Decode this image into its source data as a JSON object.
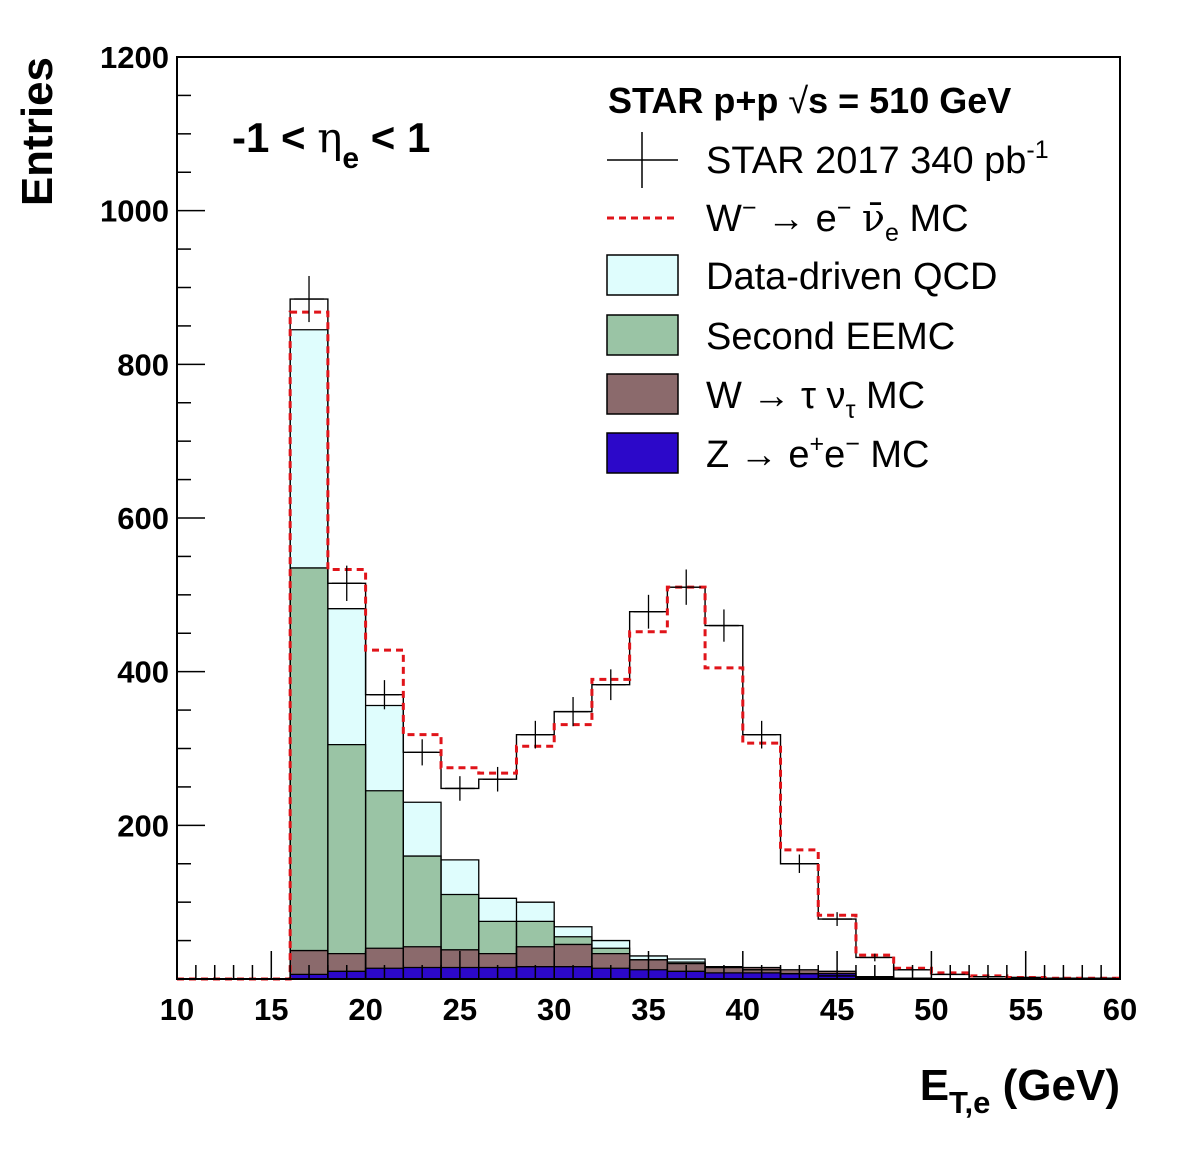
{
  "chart_data": {
    "type": "bar",
    "title": "",
    "xlabel": "E",
    "xlabel_sub": "T,e",
    "xlabel_unit": "(GeV)",
    "ylabel": "Entries",
    "xlim": [
      10,
      60
    ],
    "ylim": [
      0,
      1200
    ],
    "x_ticks": [
      10,
      15,
      20,
      25,
      30,
      35,
      40,
      45,
      50,
      55,
      60
    ],
    "y_ticks": [
      200,
      400,
      600,
      800,
      1000,
      1200
    ],
    "bin_edges": [
      10,
      12,
      14,
      16,
      18,
      20,
      22,
      24,
      26,
      28,
      30,
      32,
      34,
      36,
      38,
      40,
      42,
      44,
      46,
      48,
      50,
      52,
      54,
      56,
      58,
      60
    ],
    "region_label": {
      "pre": "-1 < ",
      "eta": "η",
      "sub": "e",
      "post": " < 1"
    },
    "legend_title": {
      "pre": "STAR p+p  ",
      "sqrt": "√",
      "post": "s = 510 GeV"
    },
    "legend": [
      {
        "key": "data",
        "pre": "STAR 2017 340 pb",
        "sup": "-1"
      },
      {
        "key": "wmc",
        "pre": "W",
        "sup": "−",
        "mid": " → e",
        "sup2": "−",
        "mid2": " ",
        "nu": "ν̄",
        "sub": "e",
        "post": " MC"
      },
      {
        "key": "qcd",
        "pre": "Data-driven QCD"
      },
      {
        "key": "eemc",
        "pre": "Second EEMC"
      },
      {
        "key": "tau",
        "pre": "W → τ ν",
        "sub": "τ",
        "post": " MC"
      },
      {
        "key": "z",
        "pre": "Z → e",
        "sup": "+",
        "mid": "e",
        "sup2": "−",
        "post": " MC"
      }
    ],
    "colors": {
      "qcd": "#dffdfd",
      "eemc": "#9ac4a5",
      "tau": "#8b6a6c",
      "z": "#2c08c9",
      "wmc": "#e0141a",
      "data": "#000000"
    },
    "series": [
      {
        "key": "data",
        "name": "STAR 2017 340 pb-1",
        "values": [
          0,
          0,
          0,
          885,
          515,
          370,
          295,
          248,
          260,
          318,
          348,
          383,
          478,
          510,
          460,
          318,
          150,
          78,
          28,
          12,
          6,
          3,
          2,
          1,
          1
        ],
        "errors": [
          0,
          0,
          0,
          30,
          23,
          19,
          17,
          16,
          16,
          18,
          19,
          20,
          22,
          23,
          21,
          18,
          12,
          9,
          5,
          3,
          2,
          2,
          1,
          1,
          1
        ]
      },
      {
        "key": "wmc",
        "name": "W− → e− ν̄e MC",
        "values": [
          0,
          0,
          0,
          868,
          533,
          428,
          318,
          275,
          268,
          303,
          331,
          390,
          452,
          510,
          405,
          307,
          168,
          83,
          31,
          14,
          8,
          4,
          2,
          1,
          1
        ]
      },
      {
        "key": "qcd",
        "name": "Data-driven QCD",
        "stack_top": [
          0,
          0,
          0,
          845,
          482,
          356,
          230,
          155,
          105,
          100,
          68,
          50,
          30,
          26,
          15,
          12,
          7,
          4,
          1,
          0,
          0,
          0,
          0,
          0,
          0
        ]
      },
      {
        "key": "eemc",
        "name": "Second EEMC",
        "stack_top": [
          0,
          0,
          0,
          535,
          305,
          245,
          160,
          110,
          75,
          75,
          55,
          40,
          25,
          22,
          15,
          12,
          7,
          4,
          1,
          0,
          0,
          0,
          0,
          0,
          0
        ]
      },
      {
        "key": "tau",
        "name": "W → τ ντ MC",
        "stack_top": [
          0,
          0,
          0,
          37,
          33,
          40,
          42,
          38,
          33,
          42,
          45,
          33,
          25,
          20,
          16,
          15,
          12,
          10,
          3,
          1,
          0,
          0,
          0,
          0,
          0
        ]
      },
      {
        "key": "z",
        "name": "Z → e+e− MC",
        "stack_top": [
          0,
          0,
          0,
          6,
          10,
          14,
          15,
          15,
          15,
          16,
          16,
          14,
          12,
          10,
          8,
          8,
          7,
          7,
          2,
          1,
          0,
          0,
          0,
          0,
          0
        ]
      }
    ],
    "legend_position": "top-right",
    "grid": false
  }
}
